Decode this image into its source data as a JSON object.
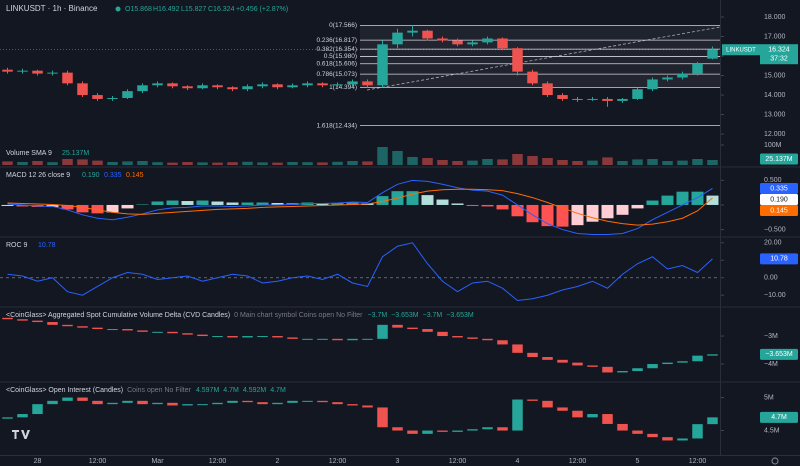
{
  "header": {
    "title": "LINKUSDT · 1h · Binance",
    "ohlc": [
      "O15.868",
      "H16.492",
      "L15.827",
      "C16.324",
      "+0.456 (+2.87%)"
    ]
  },
  "x_axis": {
    "categories": [
      null,
      null,
      "28",
      null,
      null,
      null,
      "12:00",
      null,
      null,
      null,
      "Mar",
      null,
      null,
      null,
      "12:00",
      null,
      null,
      null,
      "2",
      null,
      null,
      null,
      "12:00",
      null,
      null,
      null,
      "3",
      null,
      null,
      null,
      "12:00",
      null,
      null,
      null,
      "4",
      null,
      null,
      null,
      "12:00",
      null,
      null,
      null,
      "5",
      null,
      null,
      null,
      "12:00",
      null
    ]
  },
  "chart_data": [
    {
      "type": "candlestick",
      "symbol_label": "LINKUSDT",
      "countdown": "37:32",
      "up_color": "#26a69a",
      "down_color": "#ef5350",
      "ylim": [
        11.44,
        18.36
      ],
      "yticks": [
        {
          "value": 18,
          "label": "18.000"
        },
        {
          "value": 17,
          "label": "17.000"
        },
        {
          "value": 16,
          "label": "16.000"
        },
        {
          "value": 15,
          "label": "15.000"
        },
        {
          "value": 14,
          "label": "14.000"
        },
        {
          "value": 13,
          "label": "13.000"
        },
        {
          "value": 12,
          "label": "12.000"
        }
      ],
      "open": [
        15.3,
        15.2,
        15.25,
        15.1,
        15.15,
        14.6,
        14.0,
        13.8,
        13.85,
        14.2,
        14.5,
        14.6,
        14.45,
        14.35,
        14.5,
        14.4,
        14.3,
        14.45,
        14.55,
        14.4,
        14.5,
        14.6,
        14.5,
        14.55,
        14.7,
        14.5,
        16.6,
        17.2,
        17.3,
        16.9,
        16.8,
        16.6,
        16.7,
        16.9,
        16.4,
        15.2,
        14.6,
        14.0,
        13.8,
        13.75,
        13.8,
        13.7,
        13.8,
        14.3,
        14.8,
        14.9,
        15.1,
        15.868
      ],
      "high": [
        15.4,
        15.35,
        15.3,
        15.25,
        15.25,
        14.7,
        14.1,
        13.95,
        14.3,
        14.6,
        14.7,
        14.65,
        14.5,
        14.6,
        14.55,
        14.45,
        14.55,
        14.65,
        14.6,
        14.6,
        14.7,
        14.65,
        14.65,
        14.8,
        14.8,
        16.8,
        17.4,
        17.566,
        17.35,
        17.0,
        16.9,
        16.8,
        17.0,
        16.95,
        16.45,
        15.3,
        14.7,
        14.1,
        13.9,
        13.9,
        13.9,
        13.85,
        14.4,
        14.9,
        15.0,
        15.2,
        15.7,
        16.492
      ],
      "low": [
        15.1,
        15.1,
        15.0,
        15.0,
        14.5,
        13.9,
        13.7,
        13.7,
        13.8,
        14.1,
        14.4,
        14.35,
        14.25,
        14.3,
        14.3,
        14.2,
        14.2,
        14.35,
        14.3,
        14.35,
        14.4,
        14.4,
        14.4,
        14.45,
        14.394,
        14.4,
        16.4,
        17.0,
        16.8,
        16.7,
        16.5,
        16.5,
        16.6,
        16.3,
        15.0,
        14.5,
        13.9,
        13.7,
        13.65,
        13.7,
        13.4,
        13.6,
        13.75,
        14.2,
        14.7,
        14.8,
        15.0,
        15.827
      ],
      "close": [
        15.2,
        15.25,
        15.1,
        15.15,
        14.6,
        14.0,
        13.8,
        13.85,
        14.2,
        14.5,
        14.6,
        14.45,
        14.35,
        14.5,
        14.4,
        14.3,
        14.45,
        14.55,
        14.4,
        14.5,
        14.6,
        14.5,
        14.55,
        14.7,
        14.5,
        16.6,
        17.2,
        17.3,
        16.9,
        16.8,
        16.6,
        16.7,
        16.9,
        16.4,
        15.2,
        14.6,
        14.0,
        13.8,
        13.75,
        13.8,
        13.7,
        13.8,
        14.3,
        14.8,
        14.9,
        15.1,
        15.6,
        16.324
      ],
      "fib": [
        {
          "label": "0(17.566)",
          "value": 17.566
        },
        {
          "label": "0.236(16.817)",
          "value": 16.817
        },
        {
          "label": "0.382(16.354)",
          "value": 16.354
        },
        {
          "label": "0.5(15.980)",
          "value": 15.98
        },
        {
          "label": "0.618(15.606)",
          "value": 15.606
        },
        {
          "label": "0.786(15.073)",
          "value": 15.073
        },
        {
          "label": "1(14.394)",
          "value": 14.394
        },
        {
          "label": "1.618(12.434)",
          "value": 12.434
        }
      ]
    },
    {
      "type": "volume",
      "title": "Volume SMA 9",
      "value_label": "25.137M",
      "up_color": "#26a69a",
      "down_color": "#ef5350",
      "ylim": [
        0,
        100000000
      ],
      "yticks": [
        {
          "value": 100000000,
          "label": "100M"
        }
      ],
      "values": [
        18000000,
        15000000,
        20000000,
        14000000,
        30000000,
        28000000,
        22000000,
        15000000,
        18000000,
        20000000,
        14000000,
        12000000,
        15000000,
        13000000,
        12000000,
        14000000,
        16000000,
        13000000,
        12000000,
        15000000,
        14000000,
        13000000,
        16000000,
        20000000,
        18000000,
        90000000,
        70000000,
        40000000,
        35000000,
        25000000,
        20000000,
        22000000,
        30000000,
        28000000,
        55000000,
        45000000,
        35000000,
        25000000,
        20000000,
        22000000,
        38000000,
        20000000,
        28000000,
        30000000,
        20000000,
        22000000,
        30000000,
        25137000
      ]
    },
    {
      "type": "macd",
      "title": "MACD 12 26 close 9",
      "ylim": [
        -0.61,
        0.71
      ],
      "yticks": [
        {
          "value": 0.5,
          "label": "0.500"
        },
        {
          "value": 0,
          "label": "0.000"
        },
        {
          "value": -0.5,
          "label": "−0.500"
        }
      ],
      "histogram": {
        "value_label": "0.190",
        "colors": [
          "#26a69a",
          "#b2dfdb",
          "#ff5252",
          "#ffcdd2"
        ],
        "values": [
          -0.02,
          -0.03,
          -0.04,
          -0.04,
          -0.09,
          -0.15,
          -0.17,
          -0.15,
          -0.07,
          0.01,
          0.07,
          0.09,
          0.08,
          0.09,
          0.07,
          0.05,
          0.05,
          0.05,
          0.04,
          0.04,
          0.05,
          0.04,
          0.04,
          0.05,
          0.03,
          0.18,
          0.28,
          0.28,
          0.2,
          0.11,
          0.03,
          -0.02,
          -0.03,
          -0.09,
          -0.23,
          -0.35,
          -0.43,
          -0.44,
          -0.41,
          -0.34,
          -0.27,
          -0.2,
          -0.07,
          0.09,
          0.19,
          0.27,
          0.27,
          0.19
        ]
      },
      "macd": {
        "color": "#2962ff",
        "value_label": "0.335",
        "values": [
          0.02,
          0.0,
          -0.02,
          -0.03,
          -0.1,
          -0.2,
          -0.27,
          -0.3,
          -0.25,
          -0.18,
          -0.1,
          -0.06,
          -0.05,
          -0.02,
          -0.02,
          -0.03,
          -0.02,
          0.0,
          0.0,
          0.01,
          0.03,
          0.03,
          0.04,
          0.06,
          0.05,
          0.25,
          0.42,
          0.5,
          0.48,
          0.42,
          0.35,
          0.3,
          0.28,
          0.2,
          0.0,
          -0.2,
          -0.38,
          -0.5,
          -0.58,
          -0.6,
          -0.6,
          -0.58,
          -0.48,
          -0.3,
          -0.15,
          0.0,
          0.15,
          0.335
        ]
      },
      "signal": {
        "color": "#ff6d00",
        "value_label": "0.145",
        "values": [
          0.04,
          0.03,
          0.02,
          0.01,
          -0.01,
          -0.05,
          -0.1,
          -0.15,
          -0.18,
          -0.19,
          -0.17,
          -0.15,
          -0.13,
          -0.11,
          -0.09,
          -0.08,
          -0.07,
          -0.05,
          -0.04,
          -0.03,
          -0.02,
          -0.01,
          0.0,
          0.01,
          0.02,
          0.07,
          0.14,
          0.22,
          0.28,
          0.31,
          0.32,
          0.32,
          0.31,
          0.29,
          0.23,
          0.15,
          0.05,
          -0.06,
          -0.17,
          -0.26,
          -0.33,
          -0.38,
          -0.41,
          -0.39,
          -0.34,
          -0.27,
          -0.12,
          0.145
        ]
      }
    },
    {
      "type": "line",
      "title": "ROC 9",
      "color": "#2962ff",
      "ylim": [
        -15.6,
        23.3
      ],
      "yticks": [
        {
          "value": 20,
          "label": "20.00"
        },
        {
          "value": 10,
          "label": "10.00"
        },
        {
          "value": 0,
          "label": "0.00"
        },
        {
          "value": -10,
          "label": "−10.00"
        }
      ],
      "values": [
        2,
        1,
        -2,
        0,
        -8,
        -10,
        -5,
        0,
        3,
        2,
        -1,
        0,
        1,
        -2,
        0,
        2,
        1,
        -3,
        -2,
        0,
        1,
        -1,
        2,
        -3,
        -5,
        12,
        18,
        20,
        8,
        -2,
        -8,
        -3,
        -2,
        -6,
        -13,
        -12,
        -10,
        -7,
        -5,
        -2,
        -6,
        2,
        8,
        12,
        5,
        7,
        3,
        10.78
      ]
    },
    {
      "type": "body-candles",
      "title": "<CoinGlass> Aggregated Spot Cumulative Volume Delta (CVD Candles)",
      "settings": "0 Main chart symbol Coins open No Filter",
      "legend_values": [
        "−3.7M",
        "−3.653M",
        "−3.7M",
        "−3.653M"
      ],
      "value_label": "−3.653M",
      "up_color": "#26a69a",
      "down_color": "#ef5350",
      "ylim": [
        -4570000,
        -2070000
      ],
      "yticks": [
        {
          "value": -3000000,
          "label": "−3M"
        },
        {
          "value": -4000000,
          "label": "−4M"
        }
      ],
      "open": [
        -2350000,
        -2400000,
        -2450000,
        -2500000,
        -2600000,
        -2650000,
        -2700000,
        -2750000,
        -2750000,
        -2800000,
        -2850000,
        -2850000,
        -2900000,
        -2950000,
        -3000000,
        -3000000,
        -3050000,
        -3000000,
        -3000000,
        -3050000,
        -3100000,
        -3100000,
        -3100000,
        -3150000,
        -3100000,
        -3100000,
        -2600000,
        -2700000,
        -2750000,
        -2850000,
        -3000000,
        -3050000,
        -3100000,
        -3150000,
        -3300000,
        -3600000,
        -3750000,
        -3850000,
        -3950000,
        -4050000,
        -4100000,
        -4300000,
        -4250000,
        -4150000,
        -4000000,
        -3950000,
        -3900000,
        -3700000
      ],
      "close": [
        -2400000,
        -2450000,
        -2500000,
        -2600000,
        -2650000,
        -2700000,
        -2750000,
        -2750000,
        -2800000,
        -2850000,
        -2850000,
        -2900000,
        -2950000,
        -3000000,
        -3000000,
        -3050000,
        -3000000,
        -3000000,
        -3050000,
        -3100000,
        -3100000,
        -3100000,
        -3150000,
        -3100000,
        -3100000,
        -2600000,
        -2700000,
        -2750000,
        -2850000,
        -3000000,
        -3050000,
        -3100000,
        -3150000,
        -3300000,
        -3600000,
        -3750000,
        -3850000,
        -3950000,
        -4050000,
        -4100000,
        -4300000,
        -4250000,
        -4150000,
        -4000000,
        -3950000,
        -3900000,
        -3700000,
        -3653000
      ]
    },
    {
      "type": "body-candles",
      "title": "<CoinGlass> Open Interest (Candles)",
      "settings": "Coins open No Filter",
      "legend_values": [
        "4.597M",
        "4.7M",
        "4.592M",
        "4.7M"
      ],
      "value_label": "4.7M",
      "up_color": "#26a69a",
      "down_color": "#ef5350",
      "ylim": [
        4160000,
        5190000
      ],
      "yticks": [
        {
          "value": 5000000,
          "label": "5M"
        },
        {
          "value": 4500000,
          "label": "4.5M"
        }
      ],
      "open": [
        4680000,
        4700000,
        4750000,
        4900000,
        4950000,
        5000000,
        4950000,
        4900000,
        4920000,
        4950000,
        4900000,
        4920000,
        4880000,
        4900000,
        4900000,
        4920000,
        4950000,
        4930000,
        4900000,
        4920000,
        4950000,
        4950000,
        4930000,
        4900000,
        4880000,
        4850000,
        4550000,
        4500000,
        4450000,
        4500000,
        4480000,
        4500000,
        4520000,
        4550000,
        4500000,
        4970000,
        4950000,
        4850000,
        4800000,
        4700000,
        4750000,
        4600000,
        4500000,
        4450000,
        4400000,
        4350000,
        4380000,
        4597000
      ],
      "close": [
        4700000,
        4750000,
        4900000,
        4950000,
        5000000,
        4950000,
        4900000,
        4920000,
        4950000,
        4900000,
        4920000,
        4880000,
        4900000,
        4900000,
        4920000,
        4950000,
        4930000,
        4900000,
        4920000,
        4950000,
        4950000,
        4930000,
        4900000,
        4880000,
        4850000,
        4550000,
        4500000,
        4450000,
        4500000,
        4480000,
        4500000,
        4520000,
        4550000,
        4500000,
        4970000,
        4950000,
        4850000,
        4800000,
        4700000,
        4750000,
        4600000,
        4500000,
        4450000,
        4400000,
        4350000,
        4380000,
        4597000,
        4700000
      ]
    }
  ]
}
